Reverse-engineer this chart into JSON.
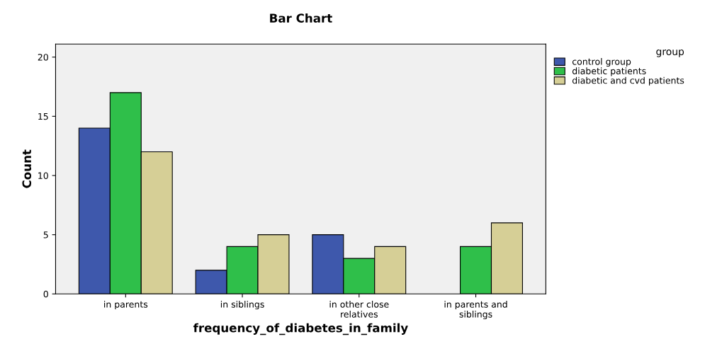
{
  "chart_data": {
    "type": "bar",
    "title": "Bar Chart",
    "xlabel": "frequency_of_diabetes_in_family",
    "ylabel": "Count",
    "categories": [
      "in parents",
      "in siblings",
      "in other close\nrelatives",
      "in parents and\nsiblings"
    ],
    "series": [
      {
        "name": "control group",
        "color": "#3e58ac",
        "values": [
          14,
          2,
          5,
          null
        ]
      },
      {
        "name": "diabetic patients",
        "color": "#2fbf4a",
        "values": [
          17,
          4,
          3,
          4
        ]
      },
      {
        "name": "diabetic and cvd patients",
        "color": "#d6cf96",
        "values": [
          12,
          5,
          4,
          6
        ]
      }
    ],
    "legend_title": "group",
    "legend": "top right",
    "grid": false,
    "ylim": [
      0,
      21.1
    ],
    "yticks": [
      0,
      5,
      10,
      15,
      20
    ]
  }
}
